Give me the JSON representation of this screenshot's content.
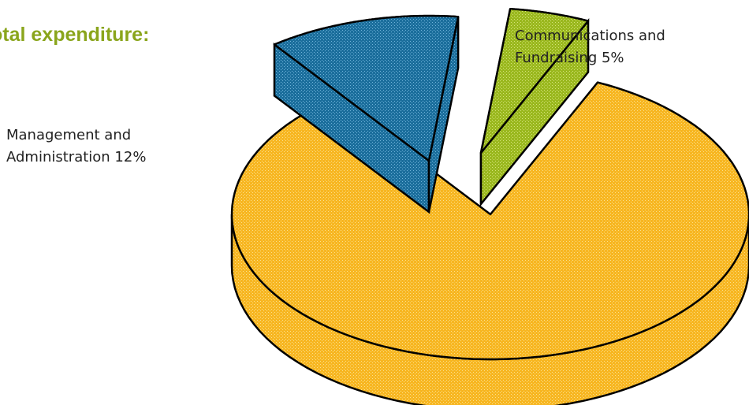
{
  "title": "otal expenditure:",
  "title_color": "#8aa51c",
  "chart_data": {
    "type": "pie",
    "title": "otal expenditure:",
    "slices": [
      {
        "label_lines": [
          "Communications and",
          "Fundraising 5%"
        ],
        "value": 5,
        "color": "#9ab81e"
      },
      {
        "label_lines": [],
        "value": 83,
        "color": "#f7b621"
      },
      {
        "label_lines": [
          "Management and",
          "Administration 12%"
        ],
        "value": 12,
        "color": "#1b6e9c"
      }
    ],
    "exploded": [
      0,
      2
    ],
    "style": "3d",
    "legend": "none"
  }
}
